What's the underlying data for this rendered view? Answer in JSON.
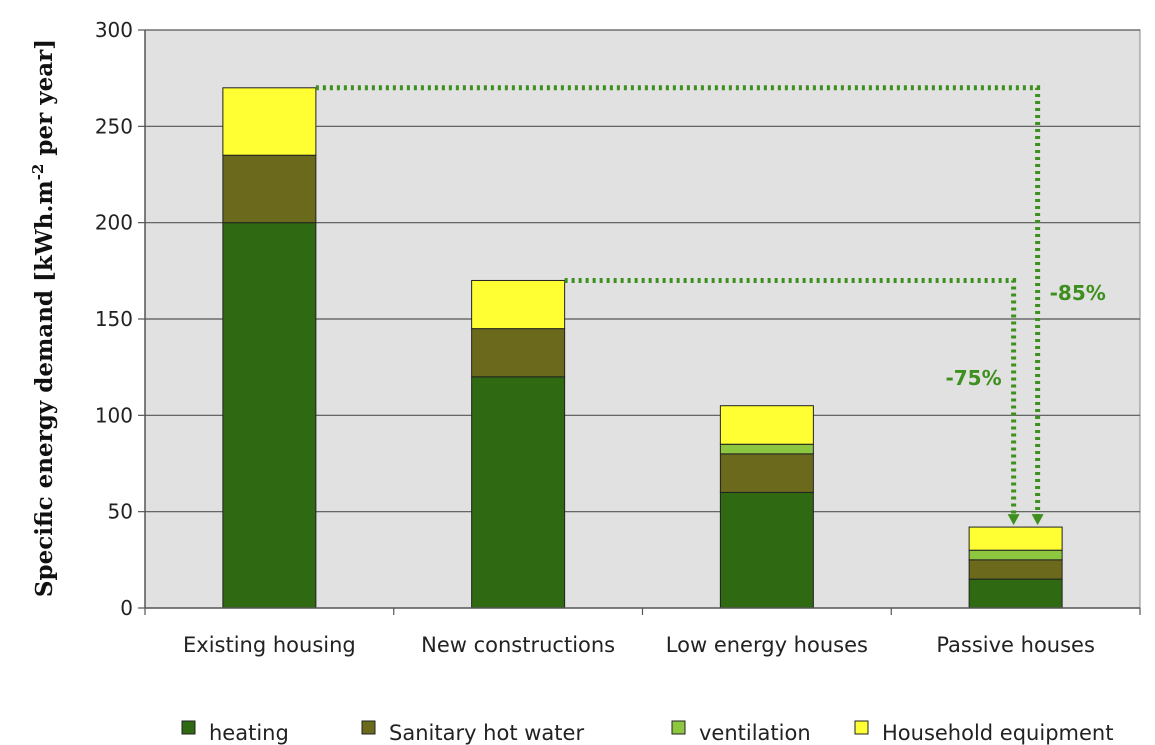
{
  "chart_data": {
    "type": "bar",
    "stacked": true,
    "ylabel": "Specific energy demand [kWh.m-2 per year]",
    "ylabel_main": "Specific energy demand [kWh.m",
    "ylabel_sup": "-2",
    "ylabel_tail": " per year]",
    "xlabel": "",
    "ylim": [
      0,
      300
    ],
    "yticks": [
      0,
      50,
      100,
      150,
      200,
      250,
      300
    ],
    "grid": true,
    "legend_position": "bottom",
    "categories": [
      "Existing housing",
      "New constructions",
      "Low energy houses",
      "Passive houses"
    ],
    "series": [
      {
        "name": "heating",
        "color": "#2f6a12",
        "values": [
          200,
          120,
          60,
          15
        ]
      },
      {
        "name": "Sanitary hot water",
        "color": "#6b6a1c",
        "values": [
          35,
          25,
          20,
          10
        ]
      },
      {
        "name": "ventilation",
        "color": "#8dc63f",
        "values": [
          0,
          0,
          5,
          5
        ]
      },
      {
        "name": "Household equipment",
        "color": "#ffff33",
        "values": [
          35,
          25,
          20,
          12
        ]
      }
    ],
    "annotations": [
      {
        "text": "-85%",
        "from_category": 0,
        "to_category": 3,
        "level": 270
      },
      {
        "text": "-75%",
        "from_category": 1,
        "to_category": 3,
        "level": 170
      }
    ]
  },
  "colors": {
    "plot_background": "#e1e1e1",
    "arrow": "#3d8f1e"
  }
}
